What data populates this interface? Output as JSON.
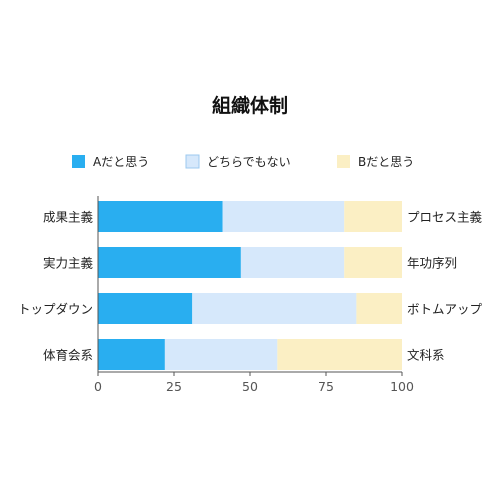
{
  "chart_data": {
    "type": "bar",
    "orientation": "horizontal",
    "stacked": true,
    "title": "組織体制",
    "categories": [
      "成果主義",
      "実力主義",
      "トップダウン",
      "体育会系"
    ],
    "right_labels": [
      "プロセス主義",
      "年功序列",
      "ボトムアップ",
      "文科系"
    ],
    "series": [
      {
        "name": "Aだと思う",
        "color": "#29aef0",
        "values": [
          41,
          47,
          31,
          22
        ]
      },
      {
        "name": "どちらでもない",
        "color": "#d6e8fb",
        "values": [
          40,
          34,
          54,
          37
        ]
      },
      {
        "name": "Bだと思う",
        "color": "#fbefc4",
        "values": [
          19,
          19,
          15,
          41
        ]
      }
    ],
    "xlim": [
      0,
      100
    ],
    "xticks": [
      0,
      25,
      50,
      75,
      100
    ],
    "legend": "top",
    "grid": false
  }
}
